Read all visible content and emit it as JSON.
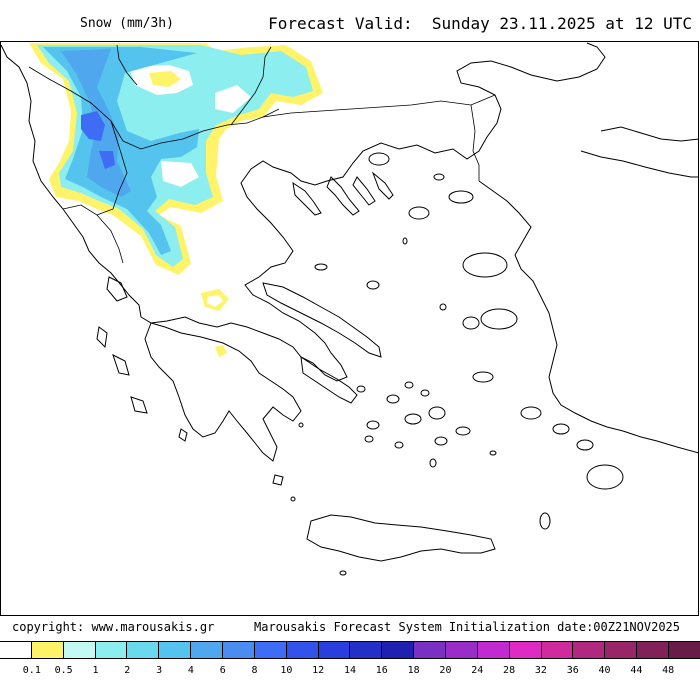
{
  "header": {
    "variable": "Snow (mm/3h)",
    "forecast_valid": "Forecast Valid:  Sunday 23.11.2025 at 12 UTC"
  },
  "footer": {
    "copyright": "copyright: www.marousakis.gr",
    "system": "Marousakis Forecast System",
    "initialization": "Initialization date:00Z21NOV2025"
  },
  "legend": {
    "thresholds": [
      "0.1",
      "0.5",
      "1",
      "2",
      "3",
      "4",
      "6",
      "8",
      "10",
      "12",
      "14",
      "16",
      "18",
      "20",
      "24",
      "28",
      "32",
      "36",
      "40",
      "44",
      "48"
    ],
    "colors": [
      "#ffffff",
      "#fff36a",
      "#c4faf4",
      "#8ceeee",
      "#6ad9ee",
      "#54c4ee",
      "#4fa7ee",
      "#4a8cf0",
      "#3f6cf4",
      "#3252ea",
      "#2a3ee0",
      "#2230c8",
      "#1e20b0",
      "#7a30c0",
      "#9a2cc8",
      "#c02ad0",
      "#e02ac4",
      "#d02a9c",
      "#b02880",
      "#9a2468",
      "#82205a",
      "#6a1c48"
    ]
  },
  "map": {
    "region": "Greece and surrounding Balkans",
    "snow_colors": {
      "light": "#fff36a",
      "very_light_cyan": "#c4faf4",
      "light_cyan": "#8ceeee",
      "medium_blue": "#54c4ee",
      "blue": "#4fa7ee",
      "dark_blue": "#3f6cf4"
    }
  }
}
